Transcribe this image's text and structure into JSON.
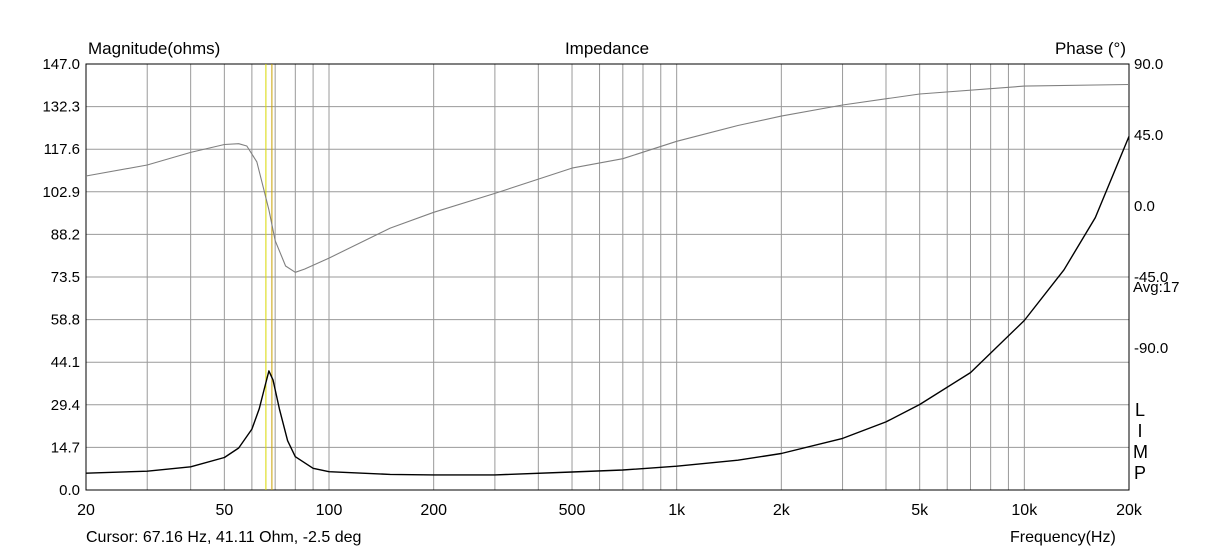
{
  "chart_data": {
    "type": "line",
    "title": "Impedance",
    "ylabel": "Magnitude(ohms)",
    "y2label": "Phase (°)",
    "xlabel": "Frequency(Hz)",
    "xscale": "log",
    "xlim": [
      20,
      20000
    ],
    "ylim": [
      0,
      147
    ],
    "y2lim": [
      -180,
      90
    ],
    "grid": true,
    "x_ticks": [
      "20",
      "50",
      "100",
      "200",
      "500",
      "1k",
      "2k",
      "5k",
      "10k",
      "20k"
    ],
    "y_ticks": [
      "147.0",
      "132.3",
      "117.6",
      "102.9",
      "88.2",
      "73.5",
      "58.8",
      "44.1",
      "29.4",
      "14.7",
      "0.0"
    ],
    "y2_ticks": [
      "90.0",
      "45.0",
      "0.0",
      "-45.0",
      "-90.0"
    ],
    "y2_note": "Avg:17",
    "cursor": {
      "freq": 67.16,
      "label": "Cursor: 67.16 Hz, 41.11 Ohm, -2.5 deg"
    },
    "series": [
      {
        "name": "Magnitude",
        "color": "#000000",
        "x": [
          20,
          30,
          40,
          50,
          55,
          60,
          63,
          65,
          67.16,
          69,
          72,
          76,
          80,
          90,
          100,
          150,
          200,
          300,
          500,
          700,
          1000,
          1500,
          2000,
          3000,
          4000,
          5000,
          7000,
          10000,
          13000,
          16000,
          20000
        ],
        "values": [
          5.8,
          6.5,
          8.0,
          11.2,
          14.5,
          21,
          28,
          34.5,
          41.11,
          38,
          28,
          17,
          11.5,
          7.5,
          6.3,
          5.4,
          5.2,
          5.2,
          6.2,
          6.9,
          8.2,
          10.3,
          12.6,
          17.8,
          23.5,
          29.5,
          40.5,
          58.5,
          76,
          94,
          122
        ]
      },
      {
        "name": "Phase",
        "color": "#808080",
        "x": [
          20,
          30,
          40,
          50,
          55,
          58,
          62,
          65,
          67.16,
          70,
          75,
          80,
          85,
          100,
          150,
          200,
          300,
          500,
          700,
          1000,
          1500,
          2000,
          3000,
          5000,
          10000,
          20000
        ],
        "values": [
          19,
          26,
          34,
          39,
          39.5,
          38,
          28,
          10,
          -2.5,
          -22,
          -38,
          -42,
          -40,
          -33,
          -14,
          -4,
          8,
          24,
          30,
          41,
          51,
          57,
          64,
          71,
          76,
          77
        ]
      }
    ]
  },
  "limp_logo": [
    "L",
    "I",
    "M",
    "P"
  ]
}
